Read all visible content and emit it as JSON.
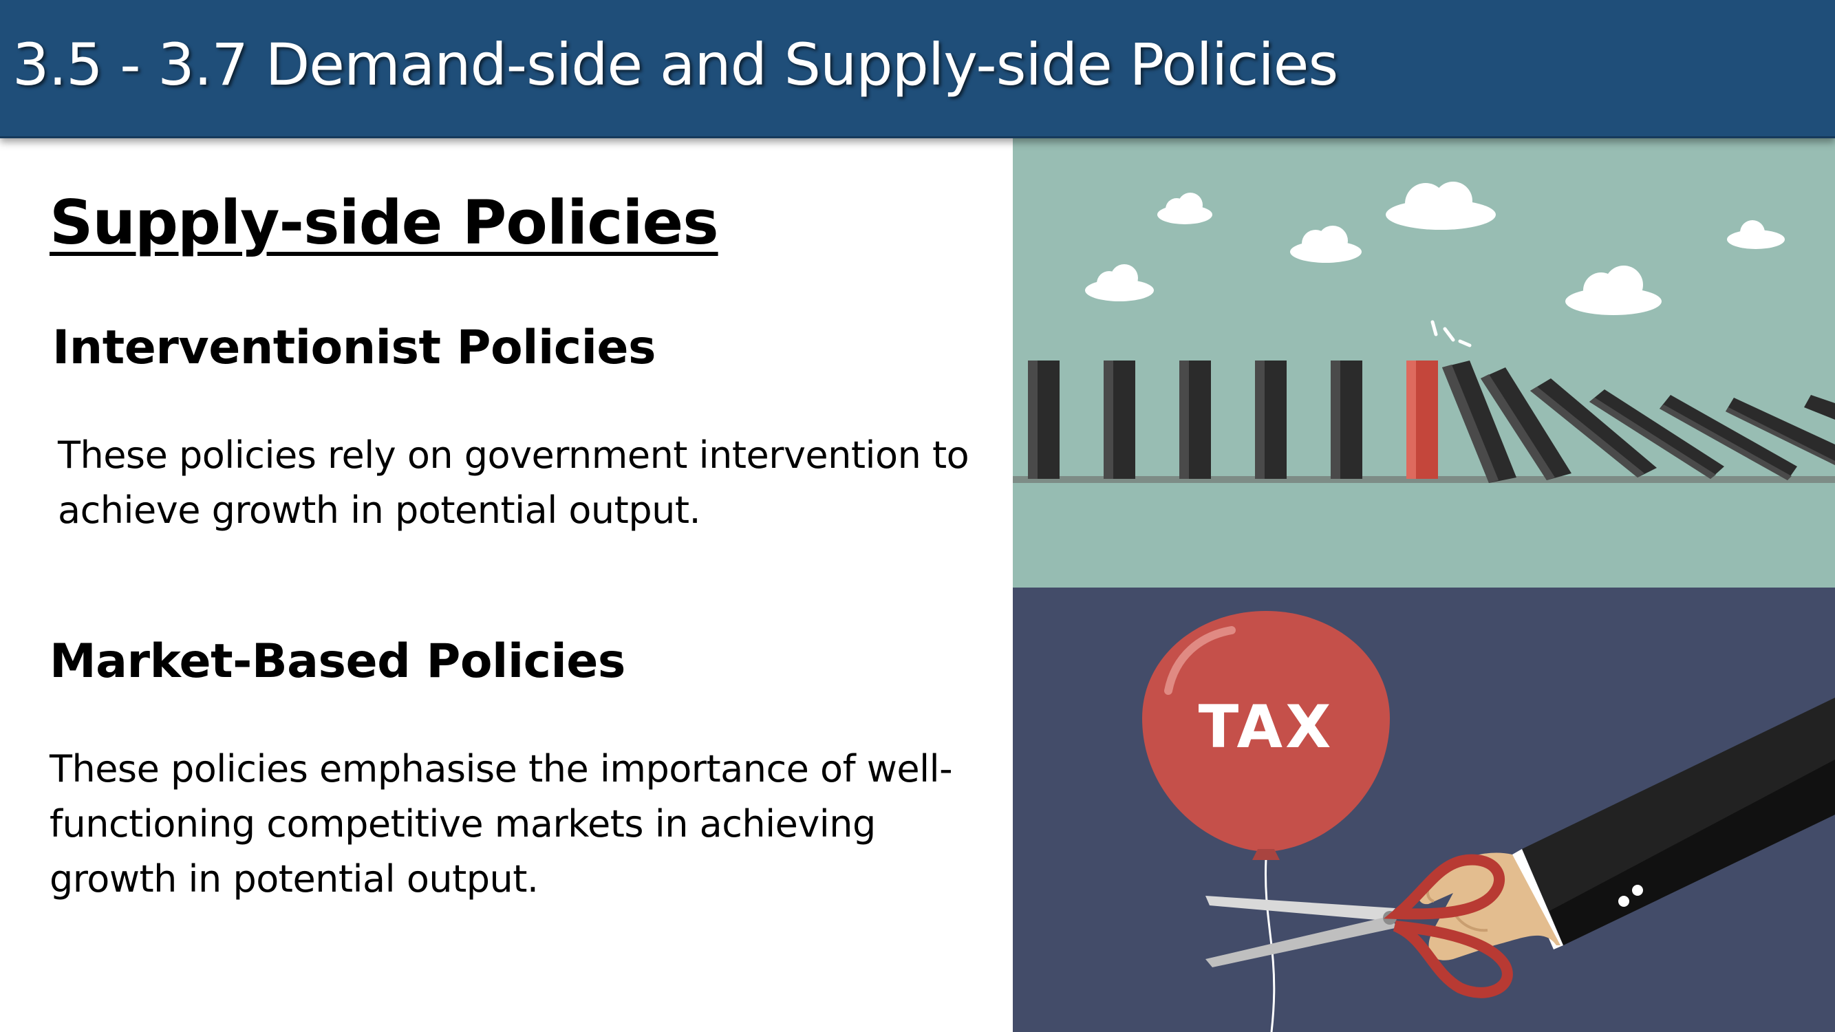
{
  "header": {
    "title": "3.5 - 3.7 Demand-side and Supply-side Policies"
  },
  "section": {
    "title": "Supply-side Policies",
    "interventionist": {
      "heading": "Interventionist Policies",
      "text": "These policies rely on government intervention to achieve growth in potential output."
    },
    "market_based": {
      "heading": "Market-Based Policies",
      "text": "These policies emphasise the importance of well-functioning competitive markets in achieving growth in potential output."
    }
  },
  "illustrations": {
    "balloon_label": "TAX",
    "colors": {
      "sky": "#98bdb3",
      "navy_bg": "#434c69",
      "domino_dark": "#2b2b2b",
      "domino_red": "#c4463b",
      "balloon_red": "#c5504a",
      "header_blue": "#1f4e79"
    }
  }
}
